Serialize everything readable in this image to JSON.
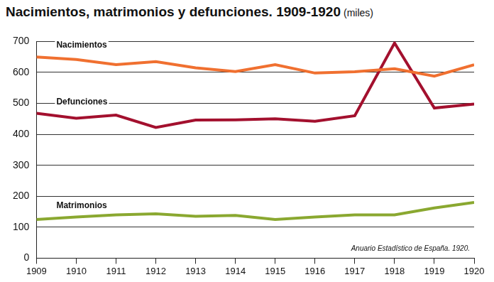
{
  "chart_data": {
    "type": "line",
    "title": "Nacimientos, matrimonios y defunciones. 1909-1920",
    "subtitle": "(miles)",
    "annotations": [
      "Anuario Estadístico de España. 1920."
    ],
    "categories": [
      "1909",
      "1910",
      "1911",
      "1912",
      "1913",
      "1914",
      "1915",
      "1916",
      "1917",
      "1918",
      "1919",
      "1920"
    ],
    "series": [
      {
        "name": "Nacimientos",
        "color": "#f07030",
        "values": [
          650,
          642,
          625,
          635,
          615,
          603,
          625,
          598,
          602,
          612,
          588,
          625
        ]
      },
      {
        "name": "Defunciones",
        "color": "#a3102e",
        "values": [
          468,
          452,
          462,
          422,
          446,
          447,
          450,
          442,
          460,
          695,
          485,
          498
        ]
      },
      {
        "name": "Matrimonios",
        "color": "#8aa830",
        "values": [
          125,
          133,
          140,
          143,
          135,
          138,
          125,
          133,
          140,
          140,
          162,
          180
        ]
      }
    ],
    "ylim": [
      0,
      700
    ],
    "yticks": [
      0,
      100,
      200,
      300,
      400,
      500,
      600,
      700
    ],
    "grid": true
  }
}
